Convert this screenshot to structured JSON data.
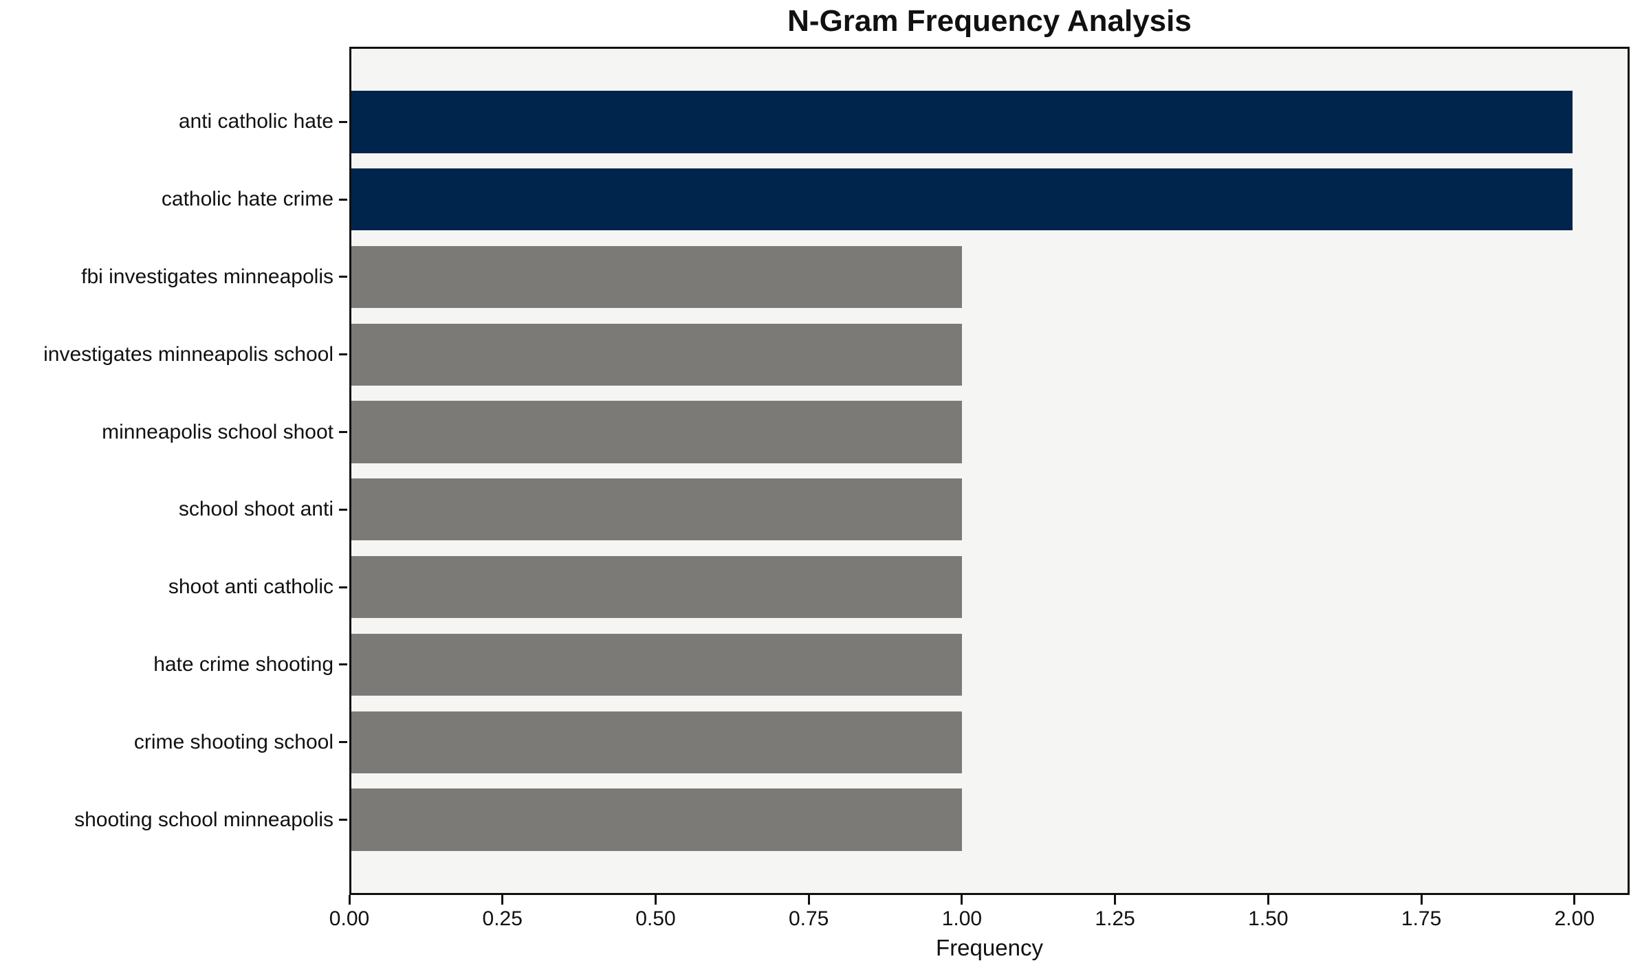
{
  "chart_data": {
    "type": "bar",
    "orientation": "horizontal",
    "title": "N-Gram Frequency Analysis",
    "xlabel": "Frequency",
    "ylabel": "",
    "categories": [
      "anti catholic hate",
      "catholic hate crime",
      "fbi investigates minneapolis",
      "investigates minneapolis school",
      "minneapolis school shoot",
      "school shoot anti",
      "shoot anti catholic",
      "hate crime shooting",
      "crime shooting school",
      "shooting school minneapolis"
    ],
    "values": [
      2,
      2,
      1,
      1,
      1,
      1,
      1,
      1,
      1,
      1
    ],
    "bar_colors": [
      "#00254d",
      "#00254d",
      "#7b7a77",
      "#7b7a77",
      "#7b7a77",
      "#7b7a77",
      "#7b7a77",
      "#7b7a77",
      "#7b7a77",
      "#7b7a77"
    ],
    "highlight_color": "#00254d",
    "base_color": "#7b7a77",
    "plot_background": "#f5f5f4",
    "spine_color": "#111111",
    "xlim": [
      0,
      2.09
    ],
    "xticks": [
      {
        "value": 0.0,
        "label": "0.00"
      },
      {
        "value": 0.25,
        "label": "0.25"
      },
      {
        "value": 0.5,
        "label": "0.50"
      },
      {
        "value": 0.75,
        "label": "0.75"
      },
      {
        "value": 1.0,
        "label": "1.00"
      },
      {
        "value": 1.25,
        "label": "1.25"
      },
      {
        "value": 1.5,
        "label": "1.50"
      },
      {
        "value": 1.75,
        "label": "1.75"
      },
      {
        "value": 2.0,
        "label": "2.00"
      }
    ],
    "grid": false,
    "legend": null,
    "bar_height_fraction": 0.8
  }
}
